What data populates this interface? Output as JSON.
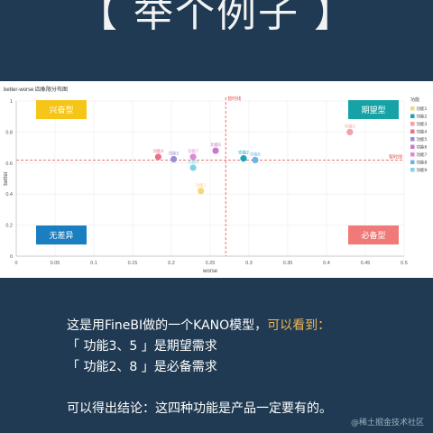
{
  "headline": "【 举个例子 】",
  "chart_data": {
    "type": "scatter",
    "title": "better-worse 四象限分布图",
    "xlabel": "worse",
    "ylabel": "better",
    "xlim": [
      0,
      0.5
    ],
    "ylim": [
      0,
      1
    ],
    "xticks": [
      "0",
      "0.05",
      "0.1",
      "0.15",
      "0.2",
      "0.25",
      "0.3",
      "0.35",
      "0.4",
      "0.45",
      "0.5"
    ],
    "yticks": [
      "0",
      "0.2",
      "0.4",
      "0.6",
      "0.8",
      "1"
    ],
    "grid": true,
    "legend_position": "right",
    "legend_title": "功能",
    "reference_lines": {
      "vertical": {
        "value": 0.27,
        "label": "暂时线"
      },
      "horizontal": {
        "value": 0.62,
        "label": "暂时线"
      }
    },
    "quadrant_labels": [
      {
        "text": "兴奋型",
        "color": "#f5c518"
      },
      {
        "text": "期望型",
        "color": "#17a2a5"
      },
      {
        "text": "无差异",
        "color": "#1a7fc1"
      },
      {
        "text": "必备型",
        "color": "#f07a78"
      }
    ],
    "points": [
      {
        "name": "功能1",
        "x": 0.238,
        "y": 0.42,
        "color": "#f5d77a"
      },
      {
        "name": "功能2",
        "x": 0.293,
        "y": 0.63,
        "color": "#1aa6b7"
      },
      {
        "name": "功能3",
        "x": 0.43,
        "y": 0.8,
        "color": "#f4a0a6"
      },
      {
        "name": "功能4",
        "x": 0.183,
        "y": 0.64,
        "color": "#e8718d"
      },
      {
        "name": "功能5",
        "x": 0.203,
        "y": 0.625,
        "color": "#9b8dd1"
      },
      {
        "name": "功能6",
        "x": 0.257,
        "y": 0.68,
        "color": "#c879c8"
      },
      {
        "name": "功能7",
        "x": 0.228,
        "y": 0.64,
        "color": "#dd8ad6"
      },
      {
        "name": "功能8",
        "x": 0.308,
        "y": 0.62,
        "color": "#6fb1e6"
      },
      {
        "name": "功能9",
        "x": 0.228,
        "y": 0.57,
        "color": "#7fd3e6"
      }
    ]
  },
  "description": {
    "line1_main": "这是用FineBI做的一个KANO模型，",
    "line1_highlight": "可以看到：",
    "line2": "「 功能3、5 」是期望需求",
    "line3": "「 功能2、8 」是必备需求",
    "line4": "可以得出结论：这四种功能是产品一定要有的。"
  },
  "watermark": "@稀土掘金技术社区"
}
